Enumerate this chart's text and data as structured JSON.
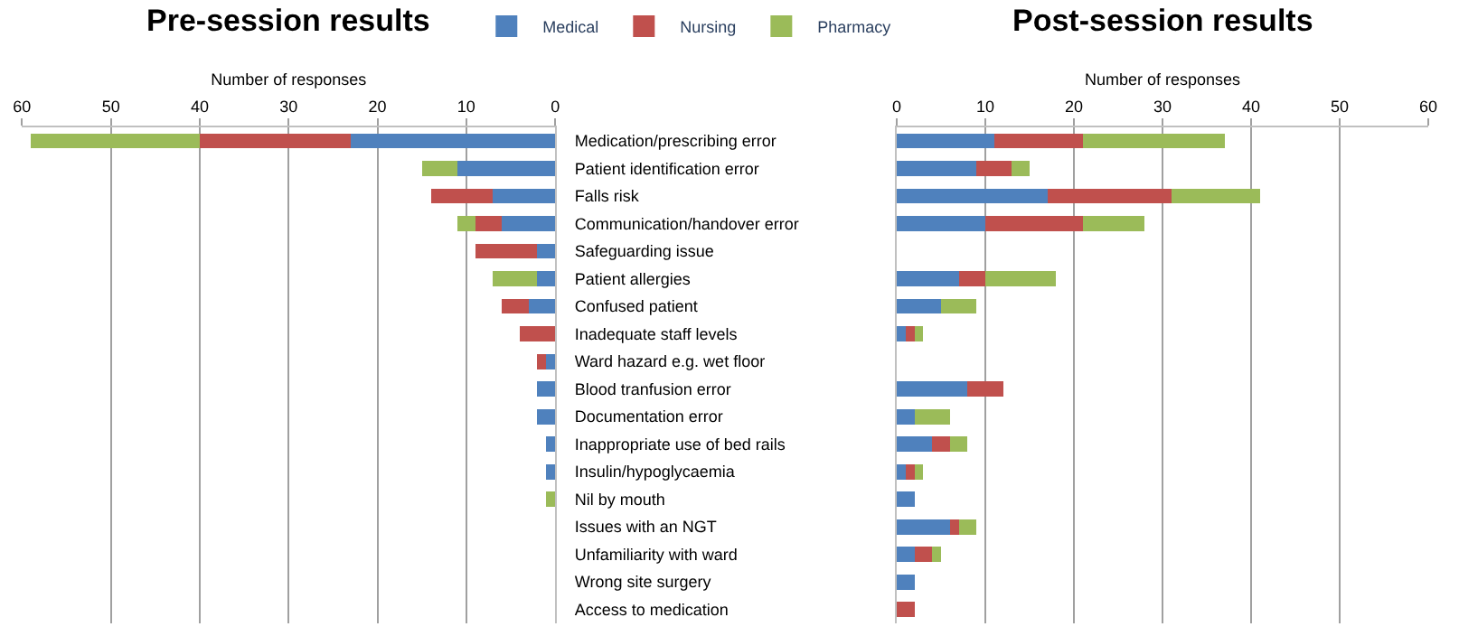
{
  "chart_data": [
    {
      "type": "bar",
      "title": "Pre-session results",
      "xlabel": "Number of responses",
      "orientation": "horizontal",
      "stacked": true,
      "xlim": [
        60,
        0
      ],
      "xticks": [
        60,
        50,
        40,
        30,
        20,
        10,
        0
      ],
      "grid": "x",
      "legend": "top right",
      "categories": [
        "Medication/prescribing error",
        "Patient identification error",
        "Falls risk",
        "Communication/handover error",
        "Safeguarding issue",
        "Patient allergies",
        "Confused patient",
        "Inadequate staff levels",
        "Ward hazard e.g. wet floor",
        "Blood tranfusion error",
        "Documentation error",
        "Inappropriate use of bed rails",
        "Insulin/hypoglycaemia",
        "Nil by mouth",
        "Issues with an NGT",
        "Unfamiliarity with ward",
        "Wrong site surgery",
        "Access to medication"
      ],
      "series": [
        {
          "name": "Medical",
          "color": "#4f81bd",
          "values": [
            23,
            11,
            7,
            6,
            2,
            2,
            3,
            0,
            1,
            2,
            2,
            1,
            1,
            0,
            0,
            0,
            0,
            0
          ]
        },
        {
          "name": "Nursing",
          "color": "#c0504d",
          "values": [
            17,
            0,
            7,
            3,
            7,
            0,
            3,
            4,
            1,
            0,
            0,
            0,
            0,
            0,
            0,
            0,
            0,
            0
          ]
        },
        {
          "name": "Pharmacy",
          "color": "#9bbb59",
          "values": [
            19,
            4,
            0,
            2,
            0,
            5,
            0,
            0,
            0,
            0,
            0,
            0,
            0,
            1,
            0,
            0,
            0,
            0
          ]
        }
      ]
    },
    {
      "type": "bar",
      "title": "Post-session results",
      "xlabel": "Number of responses",
      "orientation": "horizontal",
      "stacked": true,
      "xlim": [
        0,
        60
      ],
      "xticks": [
        0,
        10,
        20,
        30,
        40,
        50,
        60
      ],
      "grid": "x",
      "tick_labels": "x",
      "series": [
        {
          "color": "#4f81bd",
          "values": [
            11,
            9,
            17,
            10,
            0,
            7,
            5,
            1,
            0,
            8,
            2,
            4,
            1,
            2,
            6,
            2,
            2,
            0
          ]
        },
        {
          "color": "#c0504d",
          "values": [
            10,
            4,
            14,
            11,
            0,
            3,
            0,
            1,
            0,
            4,
            0,
            2,
            1,
            0,
            1,
            2,
            0,
            2
          ]
        },
        {
          "color": "#9bbb59",
          "values": [
            16,
            2,
            10,
            7,
            0,
            8,
            4,
            1,
            0,
            0,
            4,
            2,
            1,
            0,
            2,
            1,
            0,
            0
          ]
        }
      ]
    }
  ]
}
